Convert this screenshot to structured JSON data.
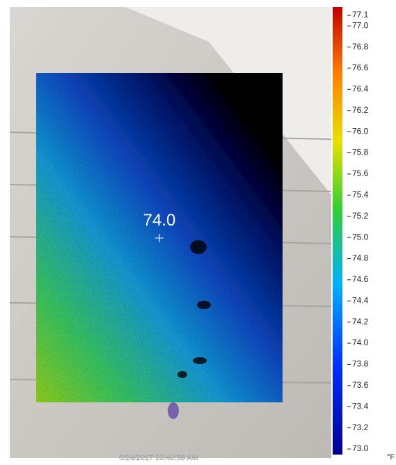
{
  "spot": {
    "label": "74.0"
  },
  "timestamp": "6/24/2017 10:40:38 AM",
  "scale": {
    "unit": "°F",
    "range": [
      73,
      77.1
    ],
    "ticks": [
      77.1,
      {
        "value": 77,
        "label": "77.0"
      },
      76.8,
      76.6,
      76.4,
      76.2,
      {
        "value": 76,
        "label": "76.0"
      },
      75.8,
      75.6,
      75.4,
      75.2,
      {
        "value": 75,
        "label": "75.0"
      },
      74.8,
      74.6,
      74.4,
      74.2,
      {
        "value": 74,
        "label": "74.0"
      },
      73.8,
      73.6,
      73.4,
      73.2,
      {
        "value": 73,
        "label": "73.0"
      }
    ]
  }
}
